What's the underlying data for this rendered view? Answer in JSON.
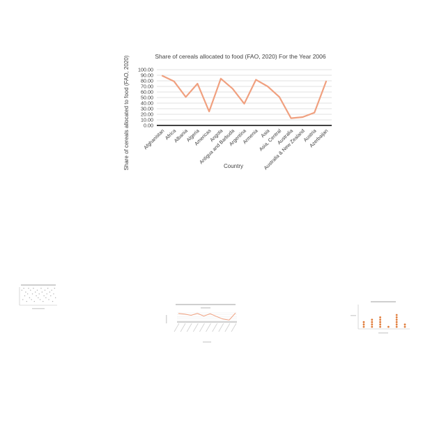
{
  "chart_data": [
    {
      "type": "line",
      "title": "Share of cereals allocated to food (FAO, 2020)  For the Year 2006",
      "xlabel": "Country",
      "ylabel": "Share of cereals allocated to food (FAO, 2020)",
      "categories": [
        "Afghanistan",
        "Africa",
        "Albania",
        "Algeria",
        "Americas",
        "Angola",
        "Antigua and Barbuda",
        "Argentina",
        "Armenia",
        "Asia",
        "Asia, Central",
        "Australia",
        "Australia & New Zealand",
        "Austria",
        "Azerbaijan"
      ],
      "values": [
        89,
        79,
        51,
        75,
        25,
        84,
        66,
        39,
        82,
        70,
        51,
        13,
        15,
        23,
        79
      ],
      "ylim": [
        0,
        100
      ],
      "yticks": [
        "0.00",
        "10.00",
        "20.00",
        "30.00",
        "40.00",
        "50.00",
        "60.00",
        "70.00",
        "80.00",
        "90.00",
        "100.00"
      ],
      "grid": true,
      "line_color": "#F0A07F"
    }
  ],
  "thumbnails": [
    {
      "kind": "scatter",
      "point_color": "#B0B0B0",
      "points": [
        [
          1,
          8
        ],
        [
          2,
          3
        ],
        [
          3,
          9
        ],
        [
          4,
          5
        ],
        [
          5,
          7
        ],
        [
          6,
          2
        ],
        [
          7,
          6
        ],
        [
          8,
          9
        ],
        [
          9,
          4
        ],
        [
          10,
          8
        ],
        [
          11,
          3
        ],
        [
          12,
          6
        ],
        [
          13,
          9
        ],
        [
          14,
          2
        ],
        [
          15,
          7
        ],
        [
          16,
          5
        ],
        [
          17,
          8
        ],
        [
          18,
          4
        ],
        [
          19,
          6
        ],
        [
          20,
          3
        ],
        [
          21,
          9
        ],
        [
          22,
          7
        ],
        [
          23,
          2
        ],
        [
          24,
          5
        ],
        [
          25,
          8
        ],
        [
          26,
          4
        ],
        [
          27,
          6
        ],
        [
          28,
          9
        ],
        [
          29,
          3
        ],
        [
          30,
          7
        ],
        [
          31,
          5
        ],
        [
          32,
          8
        ],
        [
          33,
          2
        ],
        [
          34,
          6
        ],
        [
          35,
          9
        ],
        [
          36,
          4
        ]
      ]
    },
    {
      "kind": "line",
      "line_color": "#F0A07F",
      "values": [
        84,
        80,
        74,
        84,
        70,
        82,
        68,
        55,
        50,
        86
      ]
    },
    {
      "kind": "dots",
      "dot_color": "#E07B39",
      "columns": [
        3,
        4,
        5,
        1,
        6,
        2
      ]
    }
  ]
}
